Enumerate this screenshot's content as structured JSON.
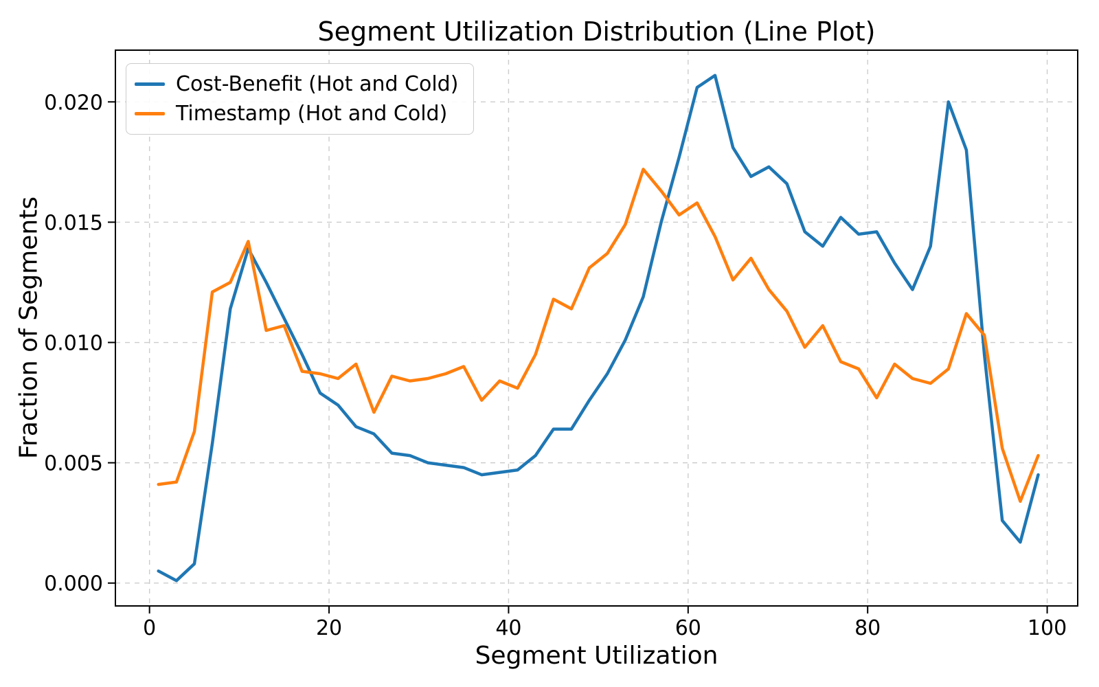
{
  "title": "Segment Utilization Distribution (Line Plot)",
  "xlabel": "Segment Utilization",
  "ylabel": "Fraction of Segments",
  "chart_data": {
    "type": "line",
    "title": "Segment Utilization Distribution (Line Plot)",
    "xlabel": "Segment Utilization",
    "ylabel": "Fraction of Segments",
    "x": [
      1,
      3,
      5,
      7,
      9,
      11,
      13,
      15,
      17,
      19,
      21,
      23,
      25,
      27,
      29,
      31,
      33,
      35,
      37,
      39,
      41,
      43,
      45,
      47,
      49,
      51,
      53,
      55,
      57,
      59,
      61,
      63,
      65,
      67,
      69,
      71,
      73,
      75,
      77,
      79,
      81,
      83,
      85,
      87,
      89,
      91,
      93,
      95,
      97,
      99
    ],
    "series": [
      {
        "name": "Cost-Benefit (Hot and Cold)",
        "color": "#1f77b4",
        "values": [
          0.0005,
          0.0001,
          0.0008,
          0.0058,
          0.0114,
          0.0139,
          0.0125,
          0.011,
          0.0095,
          0.0079,
          0.0074,
          0.0065,
          0.0062,
          0.0054,
          0.0053,
          0.005,
          0.0049,
          0.0048,
          0.0045,
          0.0046,
          0.0047,
          0.0053,
          0.0064,
          0.0064,
          0.0076,
          0.0087,
          0.0101,
          0.0119,
          0.015,
          0.0177,
          0.0206,
          0.0211,
          0.0181,
          0.0169,
          0.0173,
          0.0166,
          0.0146,
          0.014,
          0.0152,
          0.0145,
          0.0146,
          0.0133,
          0.0122,
          0.014,
          0.02,
          0.018,
          0.0095,
          0.0026,
          0.0017,
          0.0045
        ]
      },
      {
        "name": "Timestamp (Hot and Cold)",
        "color": "#ff7f0e",
        "values": [
          0.0041,
          0.0042,
          0.0063,
          0.0121,
          0.0125,
          0.0142,
          0.0105,
          0.0107,
          0.0088,
          0.0087,
          0.0085,
          0.0091,
          0.0071,
          0.0086,
          0.0084,
          0.0085,
          0.0087,
          0.009,
          0.0076,
          0.0084,
          0.0081,
          0.0095,
          0.0118,
          0.0114,
          0.0131,
          0.0137,
          0.0149,
          0.0172,
          0.0163,
          0.0153,
          0.0158,
          0.0144,
          0.0126,
          0.0135,
          0.0122,
          0.0113,
          0.0098,
          0.0107,
          0.0092,
          0.0089,
          0.0077,
          0.0091,
          0.0085,
          0.0083,
          0.0089,
          0.0112,
          0.0103,
          0.0056,
          0.0034,
          0.0053
        ]
      }
    ],
    "xticks": [
      0,
      20,
      40,
      60,
      80,
      100
    ],
    "yticks": [
      0.0,
      0.005,
      0.01,
      0.015,
      0.02
    ],
    "ytick_decimals": 3,
    "xlim": [
      -3.8,
      103.4
    ],
    "ylim": [
      -0.00095,
      0.02215
    ],
    "grid": true,
    "grid_style": "dashed",
    "grid_color": "#cccccc",
    "legend_position": "upper-left",
    "line_width": 4.5,
    "spine_color": "#000000"
  }
}
